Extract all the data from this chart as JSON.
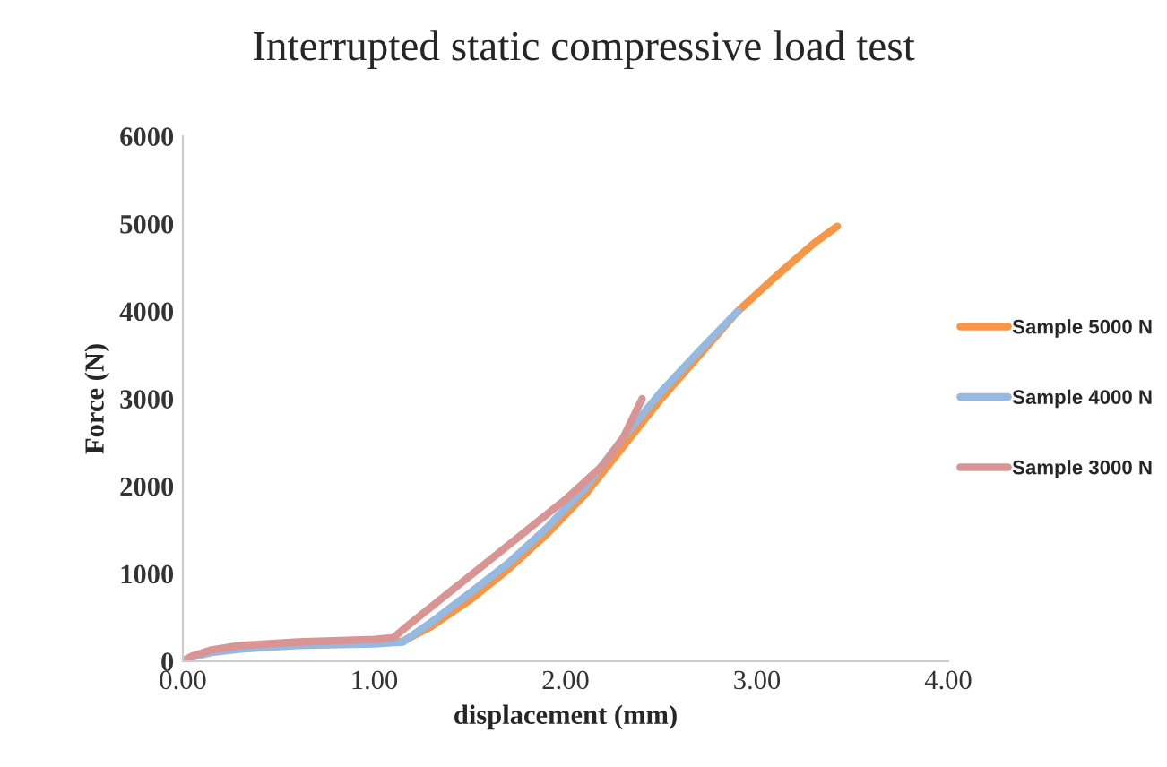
{
  "chart_data": {
    "type": "line",
    "title": "Interrupted static compressive load test",
    "xlabel": "displacement (mm)",
    "ylabel": "Force (N)",
    "xlim": [
      0,
      4
    ],
    "xticks": [
      {
        "value": 0,
        "label": "0.00"
      },
      {
        "value": 1,
        "label": "1.00"
      },
      {
        "value": 2,
        "label": "2.00"
      },
      {
        "value": 3,
        "label": "3.00"
      },
      {
        "value": 4,
        "label": "4.00"
      }
    ],
    "ylim": [
      0,
      6000
    ],
    "yticks": [
      0,
      1000,
      2000,
      3000,
      4000,
      5000,
      6000
    ],
    "grid": false,
    "legend": "right",
    "marker": "none",
    "line_style": "solid",
    "series": [
      {
        "name": "Sample 5000 N",
        "color": "#f79646",
        "x": [
          0,
          0.05,
          0.15,
          0.3,
          0.6,
          1.0,
          1.15,
          1.3,
          1.5,
          1.7,
          1.9,
          2.1,
          2.3,
          2.5,
          2.7,
          2.9,
          3.1,
          3.3,
          3.42
        ],
        "values": [
          0,
          60,
          110,
          150,
          190,
          210,
          230,
          400,
          700,
          1050,
          1450,
          1900,
          2450,
          3000,
          3500,
          4000,
          4400,
          4780,
          4970
        ]
      },
      {
        "name": "Sample 4000 N",
        "color": "#95b9e0",
        "x": [
          0,
          0.05,
          0.15,
          0.3,
          0.6,
          1.0,
          1.15,
          1.3,
          1.5,
          1.7,
          1.9,
          2.1,
          2.3,
          2.5,
          2.7,
          2.9
        ],
        "values": [
          0,
          50,
          100,
          140,
          180,
          200,
          220,
          450,
          780,
          1120,
          1520,
          1980,
          2550,
          3080,
          3550,
          4000
        ]
      },
      {
        "name": "Sample 3000 N",
        "color": "#d99594",
        "x": [
          0,
          0.05,
          0.15,
          0.3,
          0.6,
          1.0,
          1.1,
          1.2,
          1.4,
          1.6,
          1.8,
          2.0,
          2.2,
          2.3,
          2.4
        ],
        "values": [
          0,
          60,
          130,
          180,
          220,
          250,
          270,
          450,
          800,
          1150,
          1500,
          1850,
          2250,
          2550,
          3000
        ]
      }
    ]
  }
}
